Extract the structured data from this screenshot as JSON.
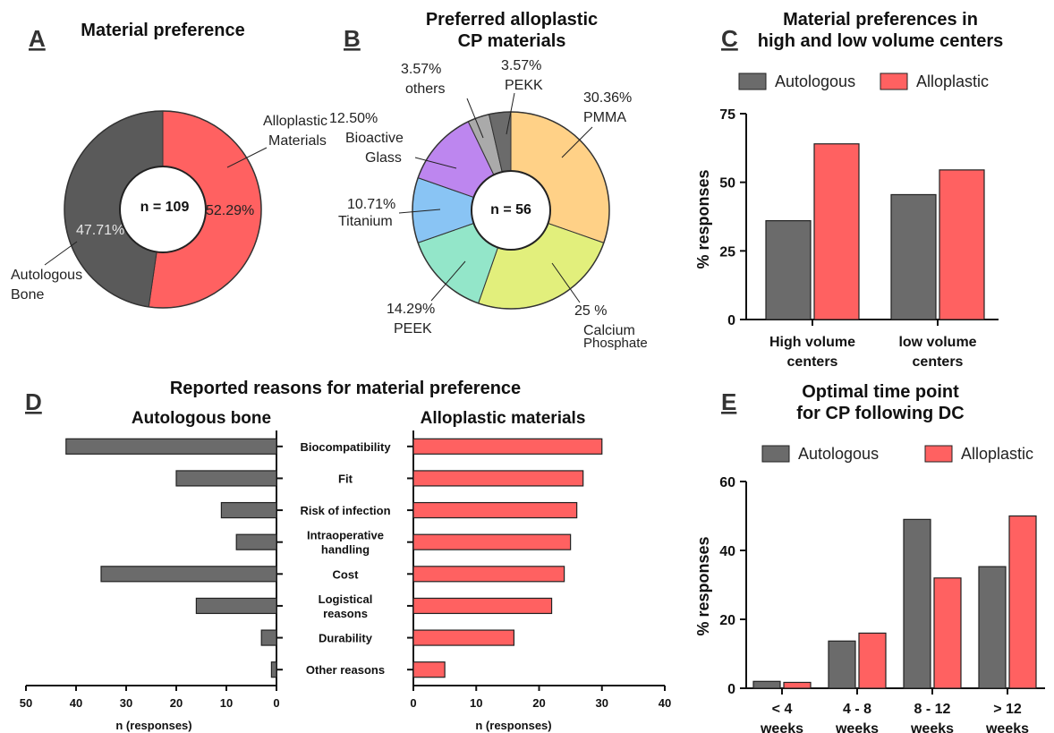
{
  "panels": {
    "A": {
      "letter": "A",
      "title": "Material preference",
      "center_label": "n = 109",
      "inner_label_left": "47.71%",
      "inner_label_right": "52.29%",
      "outer_label_right": [
        "Alloplastic",
        "Materials"
      ],
      "outer_label_left": [
        "Autologous",
        "Bone"
      ]
    },
    "B": {
      "letter": "B",
      "title": [
        "Preferred alloplastic",
        "CP materials"
      ],
      "center_label": "n = 56",
      "labels": {
        "pmma": [
          "30.36%",
          "PMMA"
        ],
        "cap": [
          "25 %",
          "Calcium",
          "Phosphate"
        ],
        "peek": [
          "14.29%",
          "PEEK"
        ],
        "ti": [
          "10.71%",
          "Titanium"
        ],
        "bg": [
          "12.50%",
          "Bioactive",
          "Glass"
        ],
        "others": [
          "3.57%",
          "others"
        ],
        "pekk": [
          "3.57%",
          "PEKK"
        ]
      }
    },
    "C": {
      "letter": "C",
      "title": [
        "Material preferences in",
        "high and low volume centers"
      ],
      "ylabel": "% responses",
      "yticks": [
        "0",
        "25",
        "50",
        "75"
      ],
      "categories": [
        [
          "High volume",
          "centers"
        ],
        [
          "low volume",
          "centers"
        ]
      ],
      "legend": [
        "Autologous",
        "Alloplastic"
      ]
    },
    "D": {
      "letter": "D",
      "title": "Reported reasons for material preference",
      "left_title": "Autologous bone",
      "right_title": "Alloplastic materials",
      "categories": [
        [
          "Biocompatibility"
        ],
        [
          "Fit"
        ],
        [
          "Risk of infection"
        ],
        [
          "Intraoperative",
          "handling"
        ],
        [
          "Cost"
        ],
        [
          "Logistical",
          "reasons"
        ],
        [
          "Durability"
        ],
        [
          "Other reasons"
        ]
      ],
      "left_ticks": [
        "50",
        "40",
        "30",
        "20",
        "10",
        "0"
      ],
      "right_ticks": [
        "0",
        "10",
        "20",
        "30",
        "40"
      ],
      "xlabel": "n (responses)"
    },
    "E": {
      "letter": "E",
      "title": [
        "Optimal time point",
        "for CP following DC"
      ],
      "ylabel": "% responses",
      "yticks": [
        "0",
        "20",
        "40",
        "60"
      ],
      "categories": [
        [
          "< 4",
          "weeks"
        ],
        [
          "4 - 8",
          "weeks"
        ],
        [
          "8 - 12",
          "weeks"
        ],
        [
          "> 12",
          "weeks"
        ]
      ],
      "legend": [
        "Autologous",
        "Alloplastic"
      ]
    }
  },
  "colors": {
    "autologous": "#6b6b6b",
    "alloplastic": "#ff6161",
    "pie_a_dark": "#5a5a5a",
    "pmma": "#ffd187",
    "calcium_phosphate": "#e2ef7c",
    "peek": "#93e6c9",
    "titanium": "#89c4f4",
    "bioactive_glass": "#bd86ef",
    "others": "#aaaaaa",
    "pekk": "#6b6b6b"
  },
  "chart_data": [
    {
      "type": "pie",
      "title": "Material preference",
      "labels": [
        "Alloplastic Materials",
        "Autologous Bone"
      ],
      "values": [
        52.29,
        47.71
      ],
      "n": 109
    },
    {
      "type": "pie",
      "title": "Preferred alloplastic CP materials",
      "labels": [
        "PMMA",
        "Calcium Phosphate",
        "PEEK",
        "Titanium",
        "Bioactive Glass",
        "others",
        "PEKK"
      ],
      "values": [
        30.36,
        25,
        14.29,
        10.71,
        12.5,
        3.57,
        3.57
      ],
      "n": 56
    },
    {
      "type": "bar",
      "title": "Material preferences in high and low volume centers",
      "categories": [
        "High volume centers",
        "low volume centers"
      ],
      "series": [
        {
          "name": "Autologous",
          "values": [
            36,
            45.5
          ]
        },
        {
          "name": "Alloplastic",
          "values": [
            64,
            54.5
          ]
        }
      ],
      "ylabel": "% responses",
      "ylim": [
        0,
        75
      ],
      "legend": "top"
    },
    {
      "type": "bar",
      "title": "Reported reasons for material preference",
      "orientation": "horizontal",
      "categories": [
        "Biocompatibility",
        "Fit",
        "Risk of infection",
        "Intraoperative handling",
        "Cost",
        "Logistical reasons",
        "Durability",
        "Other reasons"
      ],
      "series": [
        {
          "name": "Autologous bone",
          "values": [
            42,
            20,
            11,
            8,
            35,
            16,
            3,
            1
          ]
        },
        {
          "name": "Alloplastic materials",
          "values": [
            30,
            27,
            26,
            25,
            24,
            22,
            16,
            5
          ]
        }
      ],
      "xlabel": "n (responses)",
      "xlim_left": [
        0,
        50
      ],
      "xlim_right": [
        0,
        40
      ]
    },
    {
      "type": "bar",
      "title": "Optimal time point for CP following DC",
      "categories": [
        "< 4 weeks",
        "4 - 8 weeks",
        "8 - 12 weeks",
        "> 12 weeks"
      ],
      "series": [
        {
          "name": "Autologous",
          "values": [
            2,
            13.7,
            49,
            35.3
          ]
        },
        {
          "name": "Alloplastic",
          "values": [
            1.7,
            16,
            32,
            50
          ]
        }
      ],
      "ylabel": "% responses",
      "ylim": [
        0,
        60
      ],
      "legend": "top"
    }
  ]
}
